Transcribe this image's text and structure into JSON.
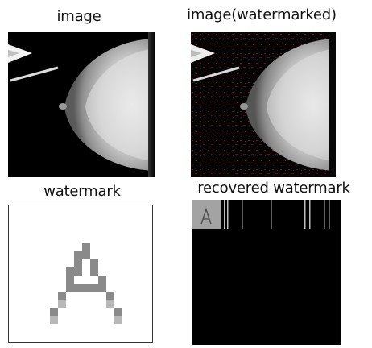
{
  "panels": [
    {
      "title": "image"
    },
    {
      "title": "image(watermarked)"
    },
    {
      "title": "watermark"
    },
    {
      "title": "recovered watermark"
    }
  ],
  "colors": {
    "background": "#000000",
    "tissue_light": "#e6e6e6",
    "tissue_mid": "#bdbdbd",
    "watermark_glyph": "#8a8a8a",
    "watermark_glyph_light": "#b8b8b8",
    "watermark_noise": "#7a1010",
    "recovered_tile": "#a0a0a0"
  },
  "watermark": {
    "glyph": "A"
  }
}
